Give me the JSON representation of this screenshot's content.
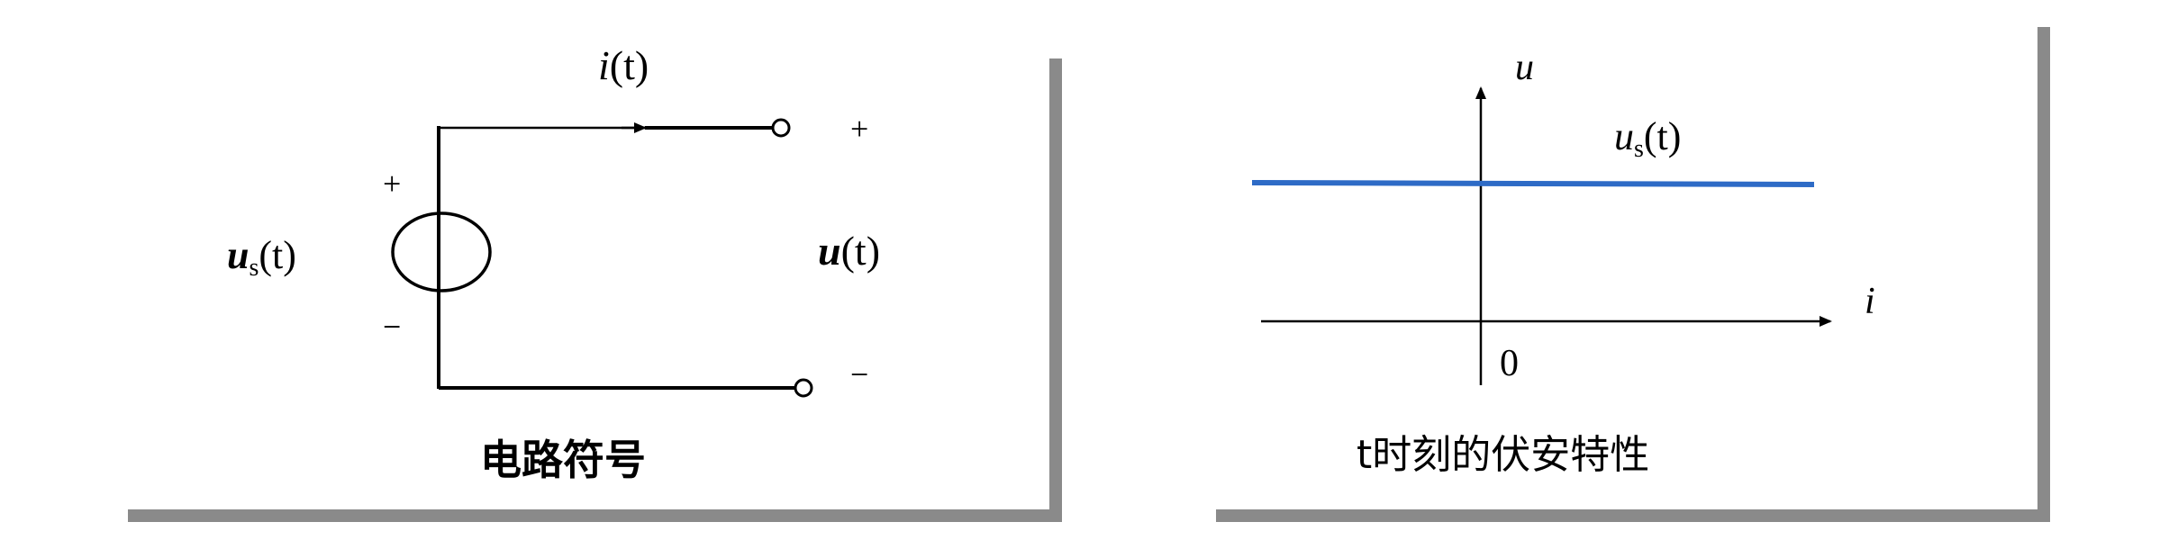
{
  "left_panel": {
    "caption": "电路符号",
    "current_label": {
      "main": "i",
      "arg": "(t)"
    },
    "source_label": {
      "main": "u",
      "sub": "s",
      "arg": "(t)"
    },
    "output_label": {
      "main": "u",
      "arg": "(t)"
    },
    "plus_source": "+",
    "minus_source": "−",
    "plus_terminal": "+",
    "minus_terminal": "−"
  },
  "right_panel": {
    "caption": "t时刻的伏安特性",
    "y_axis_label": "u",
    "x_axis_label": "i",
    "origin_label": "0",
    "line_label": {
      "main": "u",
      "sub": "s",
      "arg": "(t)"
    },
    "line_color": "#2e6bc6"
  },
  "shadow_color": "#8a8a8a"
}
